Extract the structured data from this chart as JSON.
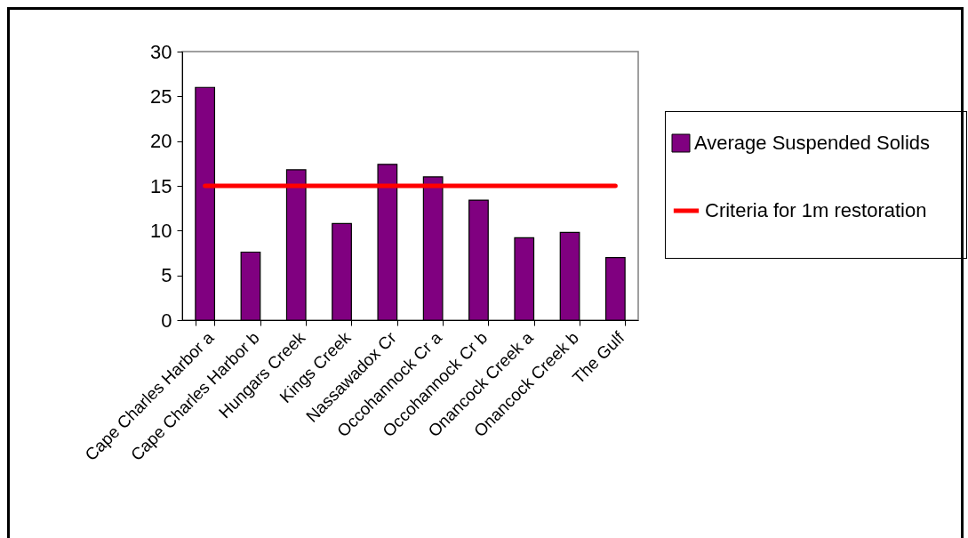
{
  "chart_data": {
    "type": "bar",
    "categories": [
      "Cape Charles Harbor a",
      "Cape Charles Harbor b",
      "Hungars Creek",
      "Kings Creek",
      "Nassawadox Cr",
      "Occohannock Cr a",
      "Occohannock Cr b",
      "Onancock Creek a",
      "Onancock Creek b",
      "The Gulf"
    ],
    "series": [
      {
        "name": "Average Suspended Solids",
        "color": "#800080",
        "values": [
          26,
          7.6,
          16.8,
          10.8,
          17.4,
          16,
          13.4,
          9.2,
          9.8,
          7.0
        ]
      },
      {
        "name": "Criteria for 1m restoration",
        "type": "line",
        "color": "#ff0000",
        "values": [
          15,
          15,
          15,
          15,
          15,
          15,
          15,
          15,
          15,
          15
        ]
      }
    ],
    "ylim": [
      0,
      30
    ],
    "yticks": [
      0,
      5,
      10,
      15,
      20,
      25,
      30
    ],
    "grid": false,
    "legend": "right"
  }
}
